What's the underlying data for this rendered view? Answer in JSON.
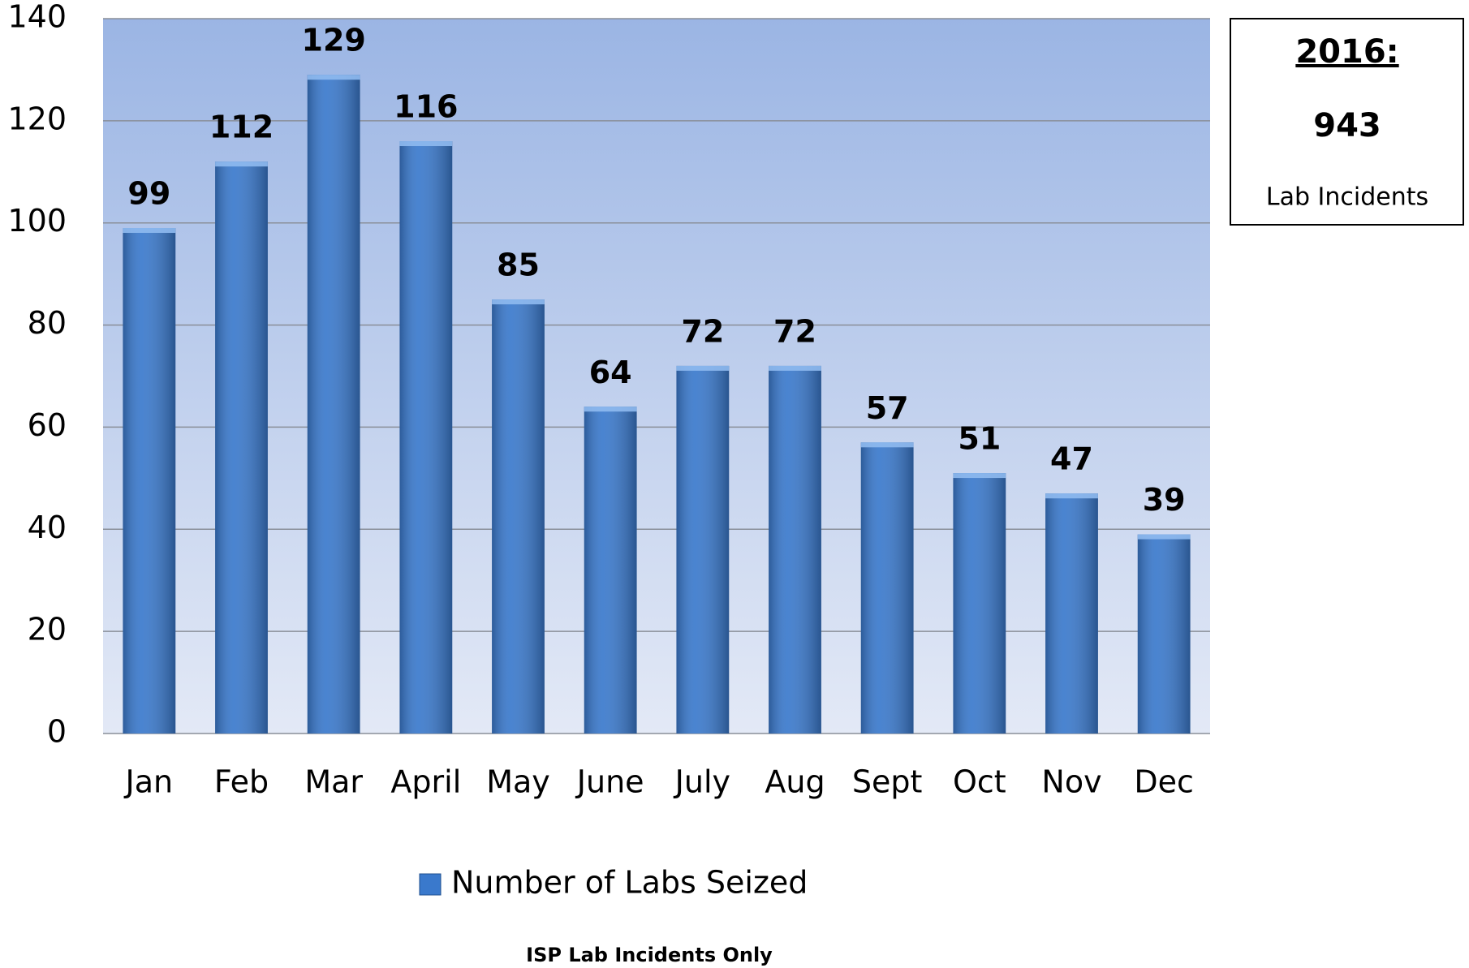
{
  "chart_data": {
    "type": "bar",
    "categories": [
      "Jan",
      "Feb",
      "Mar",
      "April",
      "May",
      "June",
      "July",
      "Aug",
      "Sept",
      "Oct",
      "Nov",
      "Dec"
    ],
    "series": [
      {
        "name": "Number of Labs Seized",
        "color": "#3a79cc",
        "values": [
          99,
          112,
          129,
          116,
          85,
          64,
          72,
          72,
          57,
          51,
          47,
          39
        ]
      }
    ],
    "ylim": [
      0,
      140
    ],
    "yticks": [
      0,
      20,
      40,
      60,
      80,
      100,
      120,
      140
    ],
    "grid": true,
    "summary": {
      "title": "2016:",
      "total": 943,
      "label": "Lab Incidents"
    },
    "footnote": "ISP Lab Incidents Only"
  }
}
